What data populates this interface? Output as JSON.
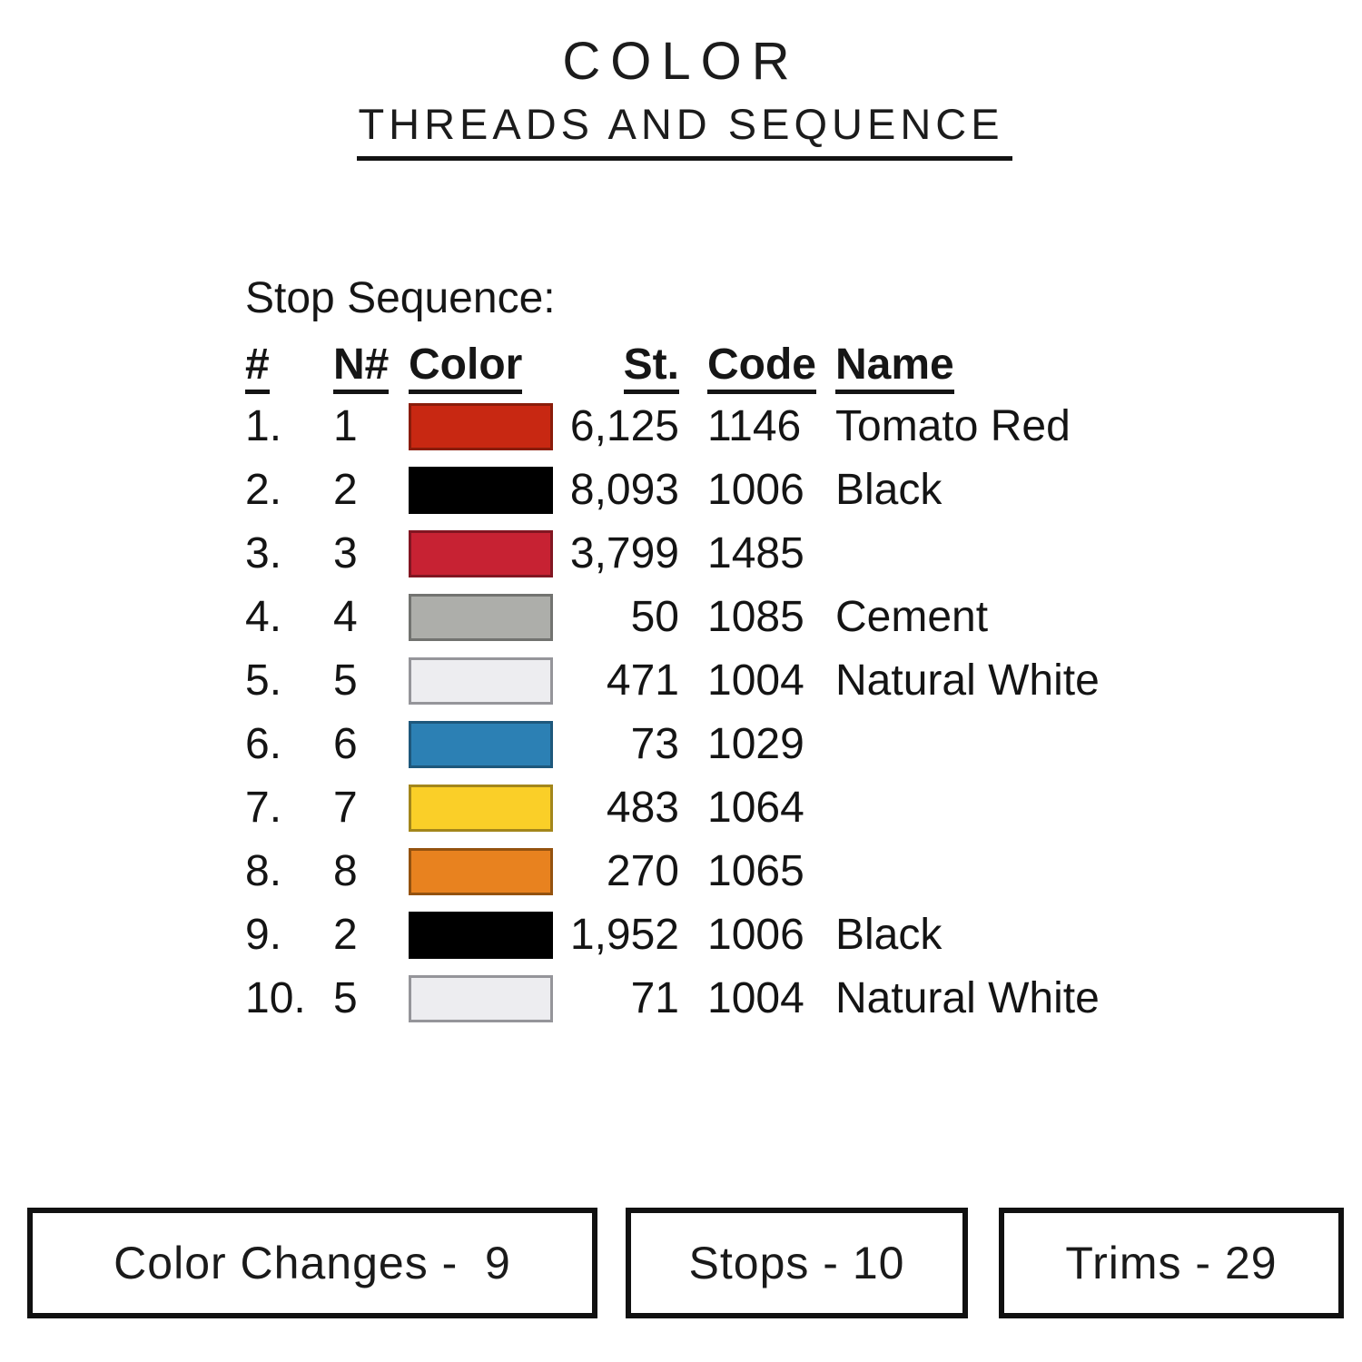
{
  "title": {
    "main": "COLOR",
    "sub": "THREADS AND SEQUENCE"
  },
  "table": {
    "caption": "Stop Sequence:",
    "headers": {
      "seq": "#",
      "needle": "N#",
      "color": "Color",
      "stitches": "St.",
      "code": "Code",
      "name": "Name"
    },
    "rows": [
      {
        "seq": "1.",
        "needle": "1",
        "swatch_fill": "#C82812",
        "swatch_border": "#8A1C0A",
        "stitches": "6,125",
        "code": "1146",
        "name": "Tomato Red"
      },
      {
        "seq": "2.",
        "needle": "2",
        "swatch_fill": "#000000",
        "swatch_border": "#000000",
        "stitches": "8,093",
        "code": "1006",
        "name": "Black"
      },
      {
        "seq": "3.",
        "needle": "3",
        "swatch_fill": "#C72233",
        "swatch_border": "#821622",
        "stitches": "3,799",
        "code": "1485",
        "name": ""
      },
      {
        "seq": "4.",
        "needle": "4",
        "swatch_fill": "#ADAEAA",
        "swatch_border": "#727370",
        "stitches": "50",
        "code": "1085",
        "name": "Cement"
      },
      {
        "seq": "5.",
        "needle": "5",
        "swatch_fill": "#EDEDF0",
        "swatch_border": "#95959A",
        "stitches": "471",
        "code": "1004",
        "name": "Natural White"
      },
      {
        "seq": "6.",
        "needle": "6",
        "swatch_fill": "#2C80B4",
        "swatch_border": "#1E587C",
        "stitches": "73",
        "code": "1029",
        "name": ""
      },
      {
        "seq": "7.",
        "needle": "7",
        "swatch_fill": "#FACF28",
        "swatch_border": "#A3861B",
        "stitches": "483",
        "code": "1064",
        "name": ""
      },
      {
        "seq": "8.",
        "needle": "8",
        "swatch_fill": "#E8821F",
        "swatch_border": "#94520F",
        "stitches": "270",
        "code": "1065",
        "name": ""
      },
      {
        "seq": "9.",
        "needle": "2",
        "swatch_fill": "#000000",
        "swatch_border": "#000000",
        "stitches": "1,952",
        "code": "1006",
        "name": "Black"
      },
      {
        "seq": "10.",
        "needle": "5",
        "swatch_fill": "#EDEDF0",
        "swatch_border": "#95959A",
        "stitches": "71",
        "code": "1004",
        "name": "Natural White"
      }
    ]
  },
  "footer": {
    "boxes": [
      {
        "label": "Color Changes",
        "value": "9",
        "text": "Color Changes -  9"
      },
      {
        "label": "Stops",
        "value": "10",
        "text": "Stops - 10"
      },
      {
        "label": "Trims",
        "value": "29",
        "text": "Trims - 29"
      }
    ]
  },
  "colors": {
    "text": "#161616",
    "background": "#FFFFFF",
    "rule": "#121212"
  }
}
